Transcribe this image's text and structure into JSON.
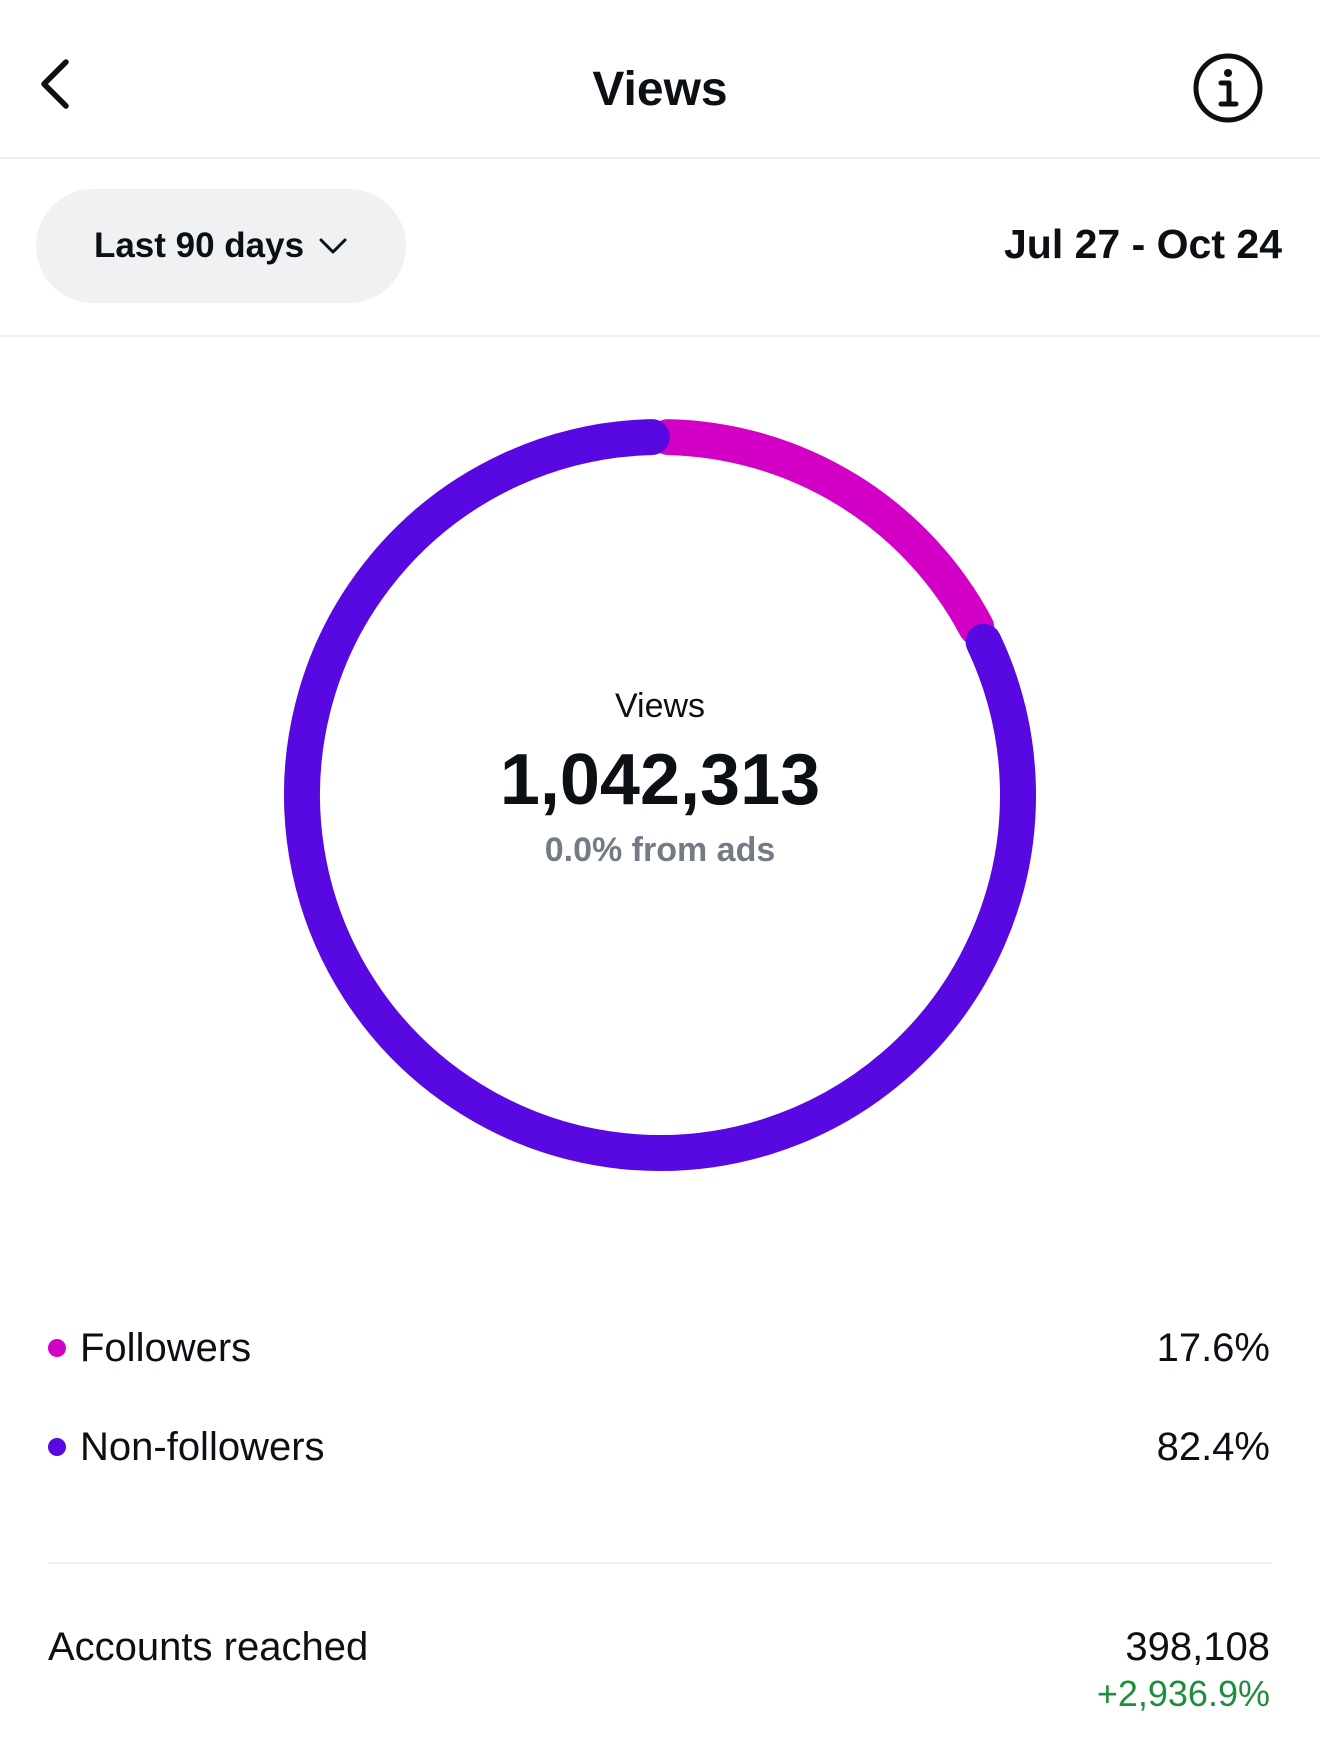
{
  "header": {
    "title": "Views",
    "back_icon": "chevron-left-icon",
    "info_icon": "info-circle-icon"
  },
  "filter": {
    "range_label": "Last 90 days",
    "range_icon": "chevron-down-icon",
    "date_range": "Jul 27 - Oct 24"
  },
  "summary": {
    "label": "Views",
    "total": "1,042,313",
    "ads_note": "0.0% from ads"
  },
  "chart_data": {
    "type": "pie",
    "categories": [
      "Followers",
      "Non-followers"
    ],
    "values": [
      17.6,
      82.4
    ],
    "colors": [
      "#d300c5",
      "#5808e0"
    ]
  },
  "legend": [
    {
      "label": "Followers",
      "value": "17.6%",
      "color": "#d300c5"
    },
    {
      "label": "Non-followers",
      "value": "82.4%",
      "color": "#5808e0"
    }
  ],
  "accounts_reached": {
    "label": "Accounts reached",
    "value": "398,108",
    "change": "+2,936.9%",
    "change_color": "#1e8e3e"
  }
}
